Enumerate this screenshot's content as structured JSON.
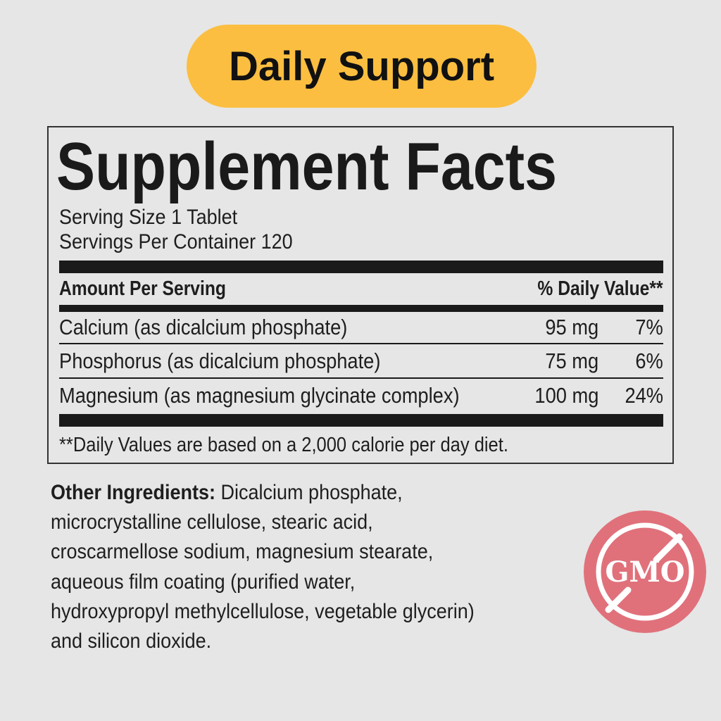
{
  "badge": {
    "label": "Daily Support",
    "color": "#fbbe40"
  },
  "facts": {
    "title": "Supplement Facts",
    "serving_size": "Serving Size 1 Tablet",
    "servings_per_container": "Servings Per Container 120",
    "header_amount": "Amount Per Serving",
    "header_dv": "% Daily Value**",
    "rows": [
      {
        "name": "Calcium (as dicalcium phosphate)",
        "amount": "95 mg",
        "dv": "7%"
      },
      {
        "name": "Phosphorus (as dicalcium phosphate)",
        "amount": "75 mg",
        "dv": "6%"
      },
      {
        "name": "Magnesium (as magnesium glycinate complex)",
        "amount": "100 mg",
        "dv": "24%"
      }
    ],
    "footnote": "**Daily Values are based on a 2,000 calorie per day diet."
  },
  "ingredients": {
    "label": "Other Ingredients:",
    "lines": [
      " Dicalcium phosphate,",
      "microcrystalline cellulose, stearic acid,",
      "croscarmellose sodium, magnesium stearate,",
      "aqueous film coating (purified water,",
      "hydroxypropyl methylcellulose, vegetable glycerin)",
      "and silicon dioxide."
    ]
  },
  "gmo_badge": {
    "text": "GMO",
    "icon": "no-gmo-icon",
    "color": "#e0717b"
  }
}
